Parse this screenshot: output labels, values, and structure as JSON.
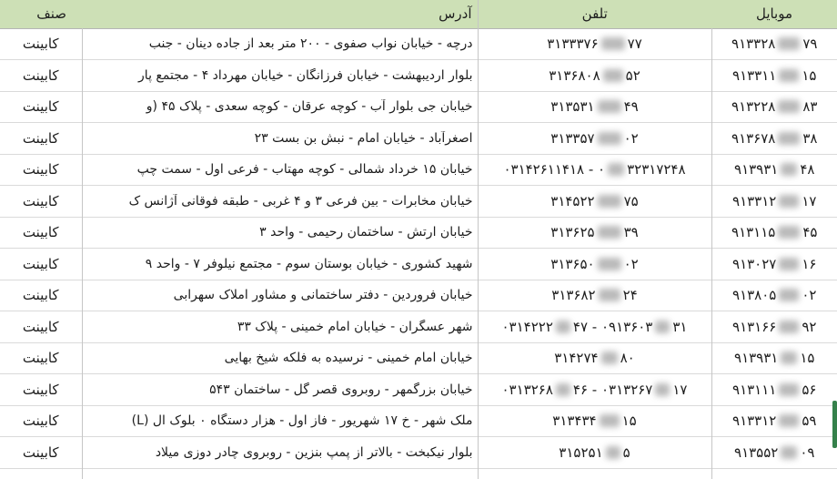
{
  "colors": {
    "header_bg": "#cde0b6",
    "row_border": "#dadada",
    "column_border": "#c6c6c6",
    "accent_green_bar": "#35814b",
    "redaction_blur": "#a8a8a8",
    "text": "#1c1c1c"
  },
  "table": {
    "headers": [
      {
        "key": "mobile",
        "label": "موبایل"
      },
      {
        "key": "phone",
        "label": "تلفن"
      },
      {
        "key": "address",
        "label": "آدرس"
      },
      {
        "key": "category",
        "label": "صنف"
      }
    ],
    "rows": [
      {
        "category": "کابینت",
        "address": "درچه - خیابان نواب صفوی - ۲۰۰ متر بعد از جاده دینان - جنب",
        "phone": [
          "۳۱۳۳۳۷۶",
          {
            "blur": 26
          },
          "۷۷"
        ],
        "mobile": [
          "۹۱۳۳۲۸",
          {
            "blur": 24
          },
          "۷۹"
        ]
      },
      {
        "category": "کابینت",
        "address": "بلوار اردیبهشت - خیابان فرزانگان - خیابان مهرداد ۴ - مجتمع پار",
        "phone": [
          "۳۱۳۶۸۰۸",
          {
            "blur": 22
          },
          "۵۲"
        ],
        "mobile": [
          "۹۱۳۳۱۱",
          {
            "blur": 22
          },
          "۱۵"
        ]
      },
      {
        "category": "کابینت",
        "address": "خیابان جی بلوار آب - کوچه عرقان - کوچه سعدی - پلاک ۴۵ (و",
        "phone": [
          "۳۱۳۵۳۱",
          {
            "blur": 26
          },
          "۴۹"
        ],
        "mobile": [
          "۹۱۳۲۲۸",
          {
            "blur": 24
          },
          "۸۳"
        ]
      },
      {
        "category": "کابینت",
        "address": "اصغرآباد - خیابان امام - نبش بن بست ۲۳",
        "phone": [
          "۳۱۳۳۵۷",
          {
            "blur": 26
          },
          "۰۲"
        ],
        "mobile": [
          "۹۱۳۶۷۸",
          {
            "blur": 24
          },
          "۳۸"
        ]
      },
      {
        "category": "کابینت",
        "address": "خیابان ۱۵ خرداد شمالی - کوچه مهتاب - فرعی اول - سمت چپ",
        "phone": [
          "۰۳۱۴۲۶۱۱۴۱۸ - ۰",
          {
            "blur": 18
          },
          "۳۲۳۱۷۲۴۸"
        ],
        "mobile": [
          "۹۱۳۹۳۱",
          {
            "blur": 18
          },
          "۴۸"
        ]
      },
      {
        "category": "کابینت",
        "address": "خیابان مخابرات - بین فرعی ۳ و ۴ غربی - طبقه فوقانی آژانس ک",
        "phone": [
          "۳۱۴۵۲۲",
          {
            "blur": 26
          },
          "۷۵"
        ],
        "mobile": [
          "۹۱۳۳۱۲",
          {
            "blur": 22
          },
          "۱۷"
        ]
      },
      {
        "category": "کابینت",
        "address": "خیابان ارتش - ساختمان رحیمی - واحد ۳",
        "phone": [
          "۳۱۳۶۲۵",
          {
            "blur": 26
          },
          "۳۹"
        ],
        "mobile": [
          "۹۱۳۱۱۵",
          {
            "blur": 24
          },
          "۴۵"
        ]
      },
      {
        "category": "کابینت",
        "address": "شهید کشوری - خیابان بوستان سوم - مجتمع نیلوفر ۷ - واحد ۹",
        "phone": [
          "۳۱۳۶۵۰",
          {
            "blur": 26
          },
          "۰۲"
        ],
        "mobile": [
          "۹۱۳۰۲۷",
          {
            "blur": 22
          },
          "۱۶"
        ]
      },
      {
        "category": "کابینت",
        "address": "خیابان فروردین - دفتر ساختمانی و مشاور املاک سهرابی",
        "phone": [
          "۳۱۳۶۸۲",
          {
            "blur": 24
          },
          "۲۴"
        ],
        "mobile": [
          "۹۱۳۸۰۵",
          {
            "blur": 22
          },
          "۰۲"
        ]
      },
      {
        "category": "کابینت",
        "address": "شهر عسگران - خیابان امام خمینی - پلاک ۳۳",
        "phone": [
          "۰۳۱۴۲۲۲",
          {
            "blur": 16
          },
          "۴۷ - ۰۹۱۳۶۰۳",
          {
            "blur": 16
          },
          "۳۱"
        ],
        "mobile": [
          "۹۱۳۱۶۶",
          {
            "blur": 22
          },
          "۹۲"
        ]
      },
      {
        "category": "کابینت",
        "address": "خیابان امام خمینی - نرسیده به فلکه شیخ بهایی",
        "phone": [
          "۳۱۴۲۷۴",
          {
            "blur": 18
          },
          "۸۰"
        ],
        "mobile": [
          "۹۱۳۹۳۱",
          {
            "blur": 18
          },
          "۱۵"
        ]
      },
      {
        "category": "کابینت",
        "address": "خیابان بزرگمهر - روبروی قصر گل - ساختمان ۵۴۳",
        "phone": [
          "۰۳۱۳۲۶۸",
          {
            "blur": 16
          },
          "۴۶ - ۰۳۱۳۲۶۷",
          {
            "blur": 16
          },
          "۱۷"
        ],
        "mobile": [
          "۹۱۳۱۱۱",
          {
            "blur": 22
          },
          "۵۶"
        ]
      },
      {
        "category": "کابینت",
        "address": "ملک شهر - خ ۱۷ شهریور - فاز اول - هزار دستگاه ۰ بلوک ال (L)",
        "phone": [
          "۳۱۳۴۳۴",
          {
            "blur": 22
          },
          "۱۵"
        ],
        "mobile": [
          "۹۱۳۳۱۲",
          {
            "blur": 22
          },
          "۵۹"
        ]
      },
      {
        "category": "کابینت",
        "address": "بلوار نیکبخت - بالاتر از پمپ بنزین - روبروی چادر دوزی میلاد",
        "phone": [
          "۳۱۵۲۵۱",
          {
            "blur": 16
          },
          "۵"
        ],
        "mobile": [
          "۹۱۳۵۵۲",
          {
            "blur": 18
          },
          "۰۹"
        ]
      }
    ]
  }
}
